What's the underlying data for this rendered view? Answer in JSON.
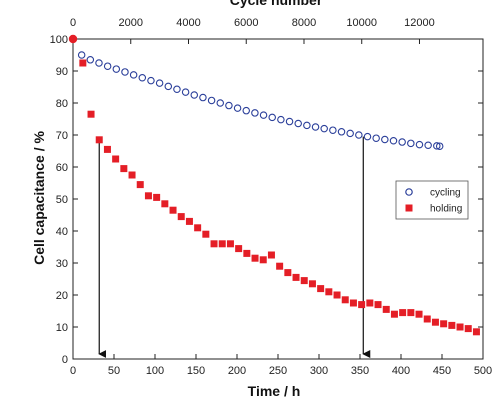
{
  "chart_data": {
    "type": "scatter",
    "xlabel": "Time / h",
    "ylabel": "Cell capacitance / %",
    "x2label": "Cycle number",
    "xlim": [
      0,
      500
    ],
    "x2lim": [
      0,
      14200
    ],
    "ylim": [
      0,
      100
    ],
    "xticks": [
      "0",
      "50",
      "100",
      "150",
      "200",
      "250",
      "300",
      "350",
      "400",
      "450",
      "500"
    ],
    "x2ticks": [
      "0",
      "2000",
      "4000",
      "6000",
      "8000",
      "10000",
      "12000"
    ],
    "yticks": [
      "0",
      "10",
      "20",
      "30",
      "40",
      "50",
      "60",
      "70",
      "80",
      "90",
      "100"
    ],
    "grid": false,
    "legend_position": "right",
    "series": [
      {
        "name": "cycling",
        "axis": "x2",
        "marker": "open-circle",
        "color": "#2b3f9a",
        "x": [
          0,
          300,
          600,
          900,
          1200,
          1500,
          1800,
          2100,
          2400,
          2700,
          3000,
          3300,
          3600,
          3900,
          4200,
          4500,
          4800,
          5100,
          5400,
          5700,
          6000,
          6300,
          6600,
          6900,
          7200,
          7500,
          7800,
          8100,
          8400,
          8700,
          9000,
          9300,
          9600,
          9900,
          10200,
          10500,
          10800,
          11100,
          11400,
          11700,
          12000,
          12300,
          12600,
          12700
        ],
        "y": [
          100,
          95,
          93.5,
          92.5,
          91.5,
          90.6,
          89.7,
          88.8,
          87.9,
          87.0,
          86.2,
          85.2,
          84.3,
          83.4,
          82.5,
          81.7,
          80.8,
          80.0,
          79.2,
          78.4,
          77.6,
          76.9,
          76.2,
          75.5,
          74.8,
          74.2,
          73.6,
          73.0,
          72.5,
          72.0,
          71.5,
          71.0,
          70.5,
          70.0,
          69.5,
          69.0,
          68.6,
          68.2,
          67.8,
          67.4,
          67.0,
          66.8,
          66.6,
          66.5
        ]
      },
      {
        "name": "holding",
        "axis": "x",
        "marker": "filled-square",
        "color": "#e41e26",
        "x": [
          0,
          12,
          22,
          32,
          42,
          52,
          62,
          72,
          82,
          92,
          102,
          112,
          122,
          132,
          142,
          152,
          162,
          172,
          182,
          192,
          202,
          212,
          222,
          232,
          242,
          252,
          262,
          272,
          282,
          292,
          302,
          312,
          322,
          332,
          342,
          352,
          362,
          372,
          382,
          392,
          402,
          412,
          422,
          432,
          442,
          452,
          462,
          472,
          482,
          492
        ],
        "y": [
          100,
          92.5,
          76.5,
          68.5,
          65.5,
          62.5,
          59.5,
          57.5,
          54.5,
          51.0,
          50.5,
          48.5,
          46.5,
          44.5,
          43.0,
          41.0,
          39.0,
          36.0,
          36.0,
          36.0,
          34.5,
          33.0,
          31.5,
          31.0,
          32.5,
          29.0,
          27.0,
          25.5,
          24.5,
          23.5,
          22.0,
          21.0,
          20.0,
          18.5,
          17.5,
          17.0,
          17.5,
          17.0,
          15.5,
          14.0,
          14.5,
          14.5,
          14.0,
          12.5,
          11.5,
          11.0,
          10.5,
          10.0,
          9.5,
          8.5
        ]
      }
    ]
  }
}
